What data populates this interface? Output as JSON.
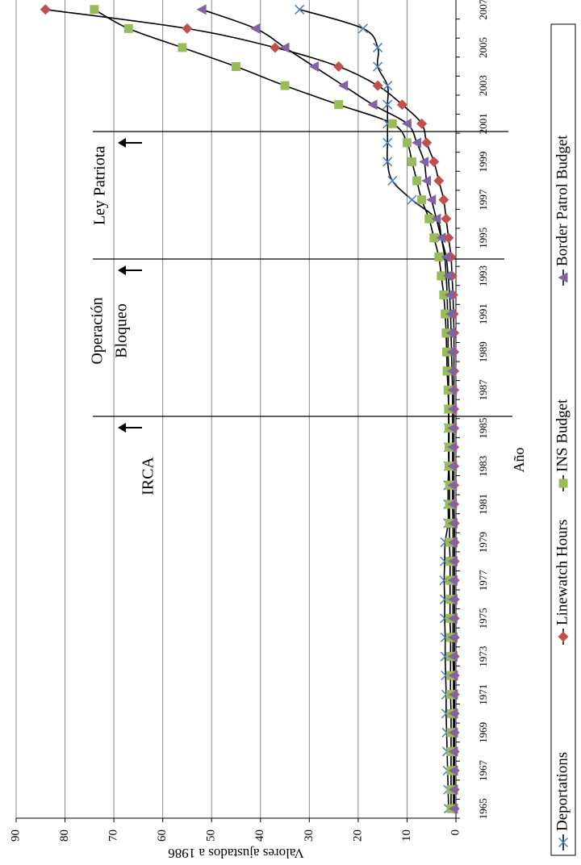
{
  "chart_data": {
    "type": "line",
    "y_label": "Valores ajustados a 1986",
    "x_label": "Año",
    "categories": [
      "1965",
      null,
      "1967",
      null,
      "1969",
      null,
      "1971",
      null,
      "1973",
      null,
      "1975",
      null,
      "1977",
      null,
      "1979",
      null,
      "1981",
      null,
      "1983",
      null,
      "1985",
      null,
      "1987",
      null,
      "1989",
      null,
      "1991",
      null,
      "1993",
      null,
      "1995",
      null,
      "1997",
      null,
      "1999",
      null,
      "2001",
      null,
      "2003",
      null,
      "2005",
      null,
      "2007"
    ],
    "series": [
      {
        "name": "Deportations",
        "color": "#4a7ebb",
        "marker": "x",
        "values": [
          1.5,
          1.6,
          1.7,
          1.8,
          1.9,
          2,
          2,
          2.1,
          2.2,
          2.2,
          2.3,
          2.3,
          2.4,
          2.3,
          2.2,
          1.6,
          1.6,
          1.6,
          1.5,
          1.5,
          1.5,
          1.5,
          1.5,
          1.5,
          1.6,
          1.6,
          1.7,
          1.8,
          2,
          2.3,
          3,
          4,
          9,
          13,
          14,
          14,
          14,
          14,
          14,
          16,
          16,
          19,
          32
        ]
      },
      {
        "name": "Linewatch Hours",
        "color": "#c0504d",
        "marker": "diamond",
        "values": [
          0.3,
          0.3,
          0.3,
          0.3,
          0.3,
          0.3,
          0.3,
          0.3,
          0.3,
          0.3,
          0.3,
          0.3,
          0.3,
          0.3,
          0.3,
          0.3,
          0.4,
          0.4,
          0.4,
          0.4,
          0.4,
          0.4,
          0.4,
          0.4,
          0.4,
          0.4,
          0.5,
          0.6,
          0.8,
          1,
          1.5,
          2,
          2.5,
          3.5,
          4.5,
          6,
          7,
          11,
          16,
          24,
          37,
          55,
          84
        ]
      },
      {
        "name": "INS Budget",
        "color": "#9bbb59",
        "marker": "square",
        "values": [
          1,
          1,
          1,
          1,
          1,
          1,
          1.1,
          1.1,
          1.1,
          1.1,
          1.2,
          1.2,
          1.2,
          1.2,
          1.3,
          1.3,
          1.3,
          1.3,
          1.4,
          1.4,
          1.4,
          1.5,
          1.6,
          1.8,
          1.9,
          2,
          2.2,
          2.5,
          3,
          3.5,
          4.5,
          5.5,
          7,
          8,
          9,
          10,
          13,
          24,
          35,
          45,
          56,
          67,
          74
        ]
      },
      {
        "name": "Border Patrol Budget",
        "color": "#8064a2",
        "marker": "triangle",
        "values": [
          0.5,
          0.5,
          0.5,
          0.5,
          0.5,
          0.5,
          0.5,
          0.5,
          0.6,
          0.6,
          0.6,
          0.6,
          0.6,
          0.6,
          0.6,
          0.6,
          0.7,
          0.7,
          0.7,
          0.7,
          0.7,
          0.7,
          0.7,
          0.8,
          0.9,
          1,
          1.1,
          1.3,
          1.6,
          2,
          3,
          4,
          5,
          6,
          6.5,
          8,
          10,
          17,
          23,
          29,
          35,
          41,
          52
        ]
      }
    ],
    "annotations": [
      {
        "lines": [
          "IRCA"
        ]
      },
      {
        "lines": [
          "Operación",
          "Bloqueo"
        ]
      },
      {
        "lines": [
          "Ley Patriota"
        ]
      }
    ],
    "ylim": [
      0,
      90
    ],
    "yticks": [
      0,
      10,
      20,
      30,
      40,
      50,
      60,
      70,
      80,
      90
    ],
    "grid": true,
    "legend": "bottom"
  }
}
